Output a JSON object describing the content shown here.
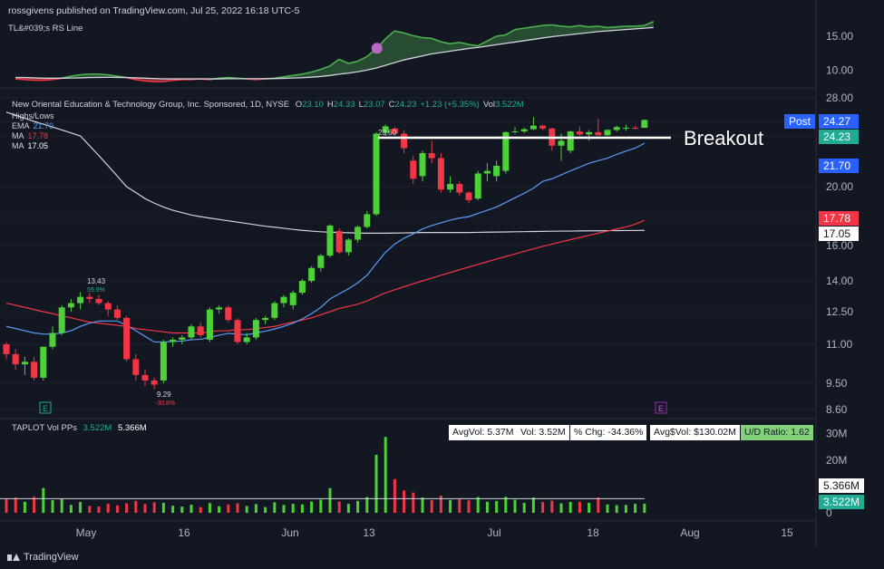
{
  "header": {
    "text": "rossgivens published on TradingView.com, Jul 25, 2022 16:18 UTC-5"
  },
  "rs_panel": {
    "title": "TL&#039;s RS Line",
    "ticks": [
      "15.00",
      "10.00"
    ]
  },
  "main_panel": {
    "title_prefix": "New Oriental Education & Technology Group, Inc. Sponsored, 1D, NYSE",
    "ohlc": [
      {
        "k": "O",
        "v": "23.10"
      },
      {
        "k": "H",
        "v": "24.33"
      },
      {
        "k": "L",
        "v": "23.07"
      },
      {
        "k": "C",
        "v": "24.23"
      },
      {
        "k": "",
        "v": "+1.23 (+5.35%)"
      },
      {
        "k": "Vol",
        "v": "3.522M"
      }
    ],
    "legend": [
      {
        "name": "Highs/Lows",
        "value": "",
        "color": "#d1d4dc"
      },
      {
        "name": "EMA",
        "value": "21.70",
        "color": "#5b9cf6"
      },
      {
        "name": "MA",
        "value": "17.78",
        "color": "#f23645"
      },
      {
        "name": "MA",
        "value": "17.05",
        "color": "#ffffff"
      }
    ],
    "annotation": "Breakout",
    "high_label": "23.60",
    "may_high": {
      "price": "13.43",
      "pct": "59.9%"
    },
    "may_low": {
      "price": "9.29",
      "pct": "-30.8%"
    },
    "price_ticks": [
      "28.00",
      "24.00",
      "22.00",
      "20.00",
      "18.00",
      "16.00",
      "14.00",
      "12.50",
      "11.00",
      "9.50",
      "8.60"
    ],
    "price_badges": [
      {
        "label": "Post",
        "value": "24.27",
        "bg": "#2962ff",
        "fg": "#ffffff"
      },
      {
        "label": "",
        "value": "24.23",
        "bg": "#22ab94",
        "fg": "#ffffff"
      },
      {
        "label": "",
        "value": "21.70",
        "bg": "#2962ff",
        "fg": "#ffffff"
      },
      {
        "label": "",
        "value": "17.78",
        "bg": "#f23645",
        "fg": "#ffffff"
      },
      {
        "label": "",
        "value": "17.05",
        "bg": "#ffffff",
        "fg": "#131722"
      }
    ],
    "earnings_marker": "E"
  },
  "volume_panel": {
    "title": "TAPLOT Vol PPs",
    "value1": "3.522M",
    "value2": "5.366M",
    "stats": [
      {
        "text": "AvgVol: 5.37M",
        "green": false
      },
      {
        "text": "Vol: 3.52M",
        "green": false
      },
      {
        "text": "% Chg: -34.36%",
        "green": false
      },
      {
        "text": "Avg$Vol: $130.02M",
        "green": false
      },
      {
        "text": "U/D Ratio: 1.62",
        "green": true
      }
    ],
    "ticks": [
      "30M",
      "20M",
      "10M",
      "0"
    ],
    "badges": [
      {
        "value": "5.366M",
        "bg": "#ffffff",
        "fg": "#131722"
      },
      {
        "value": "3.522M",
        "bg": "#22ab94",
        "fg": "#ffffff"
      }
    ]
  },
  "x_axis": [
    "May",
    "16",
    "Jun",
    "13",
    "Jul",
    "18",
    "Aug",
    "15"
  ],
  "footer": {
    "brand": "TradingView"
  },
  "chart_data": {
    "type": "candlestick",
    "scale": "log",
    "ylim": [
      8.6,
      28
    ],
    "candles": [
      {
        "o": 11.0,
        "h": 11.1,
        "l": 10.4,
        "c": 10.6
      },
      {
        "o": 10.6,
        "h": 10.8,
        "l": 10.0,
        "c": 10.2
      },
      {
        "o": 10.2,
        "h": 10.5,
        "l": 9.8,
        "c": 10.3
      },
      {
        "o": 10.3,
        "h": 10.5,
        "l": 9.6,
        "c": 9.7
      },
      {
        "o": 9.7,
        "h": 10.9,
        "l": 9.6,
        "c": 10.9
      },
      {
        "o": 10.9,
        "h": 11.8,
        "l": 10.8,
        "c": 11.5
      },
      {
        "o": 11.5,
        "h": 12.8,
        "l": 11.4,
        "c": 12.7
      },
      {
        "o": 12.7,
        "h": 13.1,
        "l": 12.5,
        "c": 12.9
      },
      {
        "o": 12.9,
        "h": 13.43,
        "l": 12.6,
        "c": 13.2
      },
      {
        "o": 13.2,
        "h": 13.4,
        "l": 12.9,
        "c": 13.1
      },
      {
        "o": 13.1,
        "h": 13.3,
        "l": 12.8,
        "c": 12.9
      },
      {
        "o": 12.9,
        "h": 13.0,
        "l": 12.3,
        "c": 12.6
      },
      {
        "o": 12.6,
        "h": 12.8,
        "l": 12.1,
        "c": 12.2
      },
      {
        "o": 12.2,
        "h": 12.3,
        "l": 10.3,
        "c": 10.4
      },
      {
        "o": 10.4,
        "h": 10.6,
        "l": 9.6,
        "c": 9.8
      },
      {
        "o": 9.8,
        "h": 10.0,
        "l": 9.4,
        "c": 9.6
      },
      {
        "o": 9.6,
        "h": 9.7,
        "l": 9.29,
        "c": 9.45
      },
      {
        "o": 9.6,
        "h": 11.2,
        "l": 9.5,
        "c": 11.1
      },
      {
        "o": 11.1,
        "h": 11.3,
        "l": 10.9,
        "c": 11.2
      },
      {
        "o": 11.2,
        "h": 11.4,
        "l": 11.0,
        "c": 11.3
      },
      {
        "o": 11.3,
        "h": 11.9,
        "l": 11.2,
        "c": 11.8
      },
      {
        "o": 11.8,
        "h": 12.0,
        "l": 11.3,
        "c": 11.4
      },
      {
        "o": 11.2,
        "h": 12.7,
        "l": 11.1,
        "c": 12.6
      },
      {
        "o": 12.6,
        "h": 12.8,
        "l": 12.4,
        "c": 12.7
      },
      {
        "o": 12.7,
        "h": 12.8,
        "l": 12.0,
        "c": 12.1
      },
      {
        "o": 12.1,
        "h": 12.2,
        "l": 11.0,
        "c": 11.1
      },
      {
        "o": 11.1,
        "h": 11.5,
        "l": 11.0,
        "c": 11.3
      },
      {
        "o": 11.3,
        "h": 12.2,
        "l": 11.2,
        "c": 12.1
      },
      {
        "o": 12.1,
        "h": 12.3,
        "l": 11.9,
        "c": 12.2
      },
      {
        "o": 12.2,
        "h": 13.0,
        "l": 12.1,
        "c": 12.9
      },
      {
        "o": 12.9,
        "h": 13.3,
        "l": 12.7,
        "c": 13.2
      },
      {
        "o": 12.8,
        "h": 13.5,
        "l": 12.6,
        "c": 13.4
      },
      {
        "o": 13.4,
        "h": 14.1,
        "l": 13.3,
        "c": 14.0
      },
      {
        "o": 14.0,
        "h": 14.8,
        "l": 13.9,
        "c": 14.7
      },
      {
        "o": 14.7,
        "h": 15.5,
        "l": 14.5,
        "c": 15.4
      },
      {
        "o": 15.4,
        "h": 17.5,
        "l": 15.3,
        "c": 17.4
      },
      {
        "o": 17.0,
        "h": 17.2,
        "l": 15.5,
        "c": 15.6
      },
      {
        "o": 15.6,
        "h": 16.5,
        "l": 15.4,
        "c": 16.4
      },
      {
        "o": 16.4,
        "h": 17.4,
        "l": 16.2,
        "c": 17.3
      },
      {
        "o": 17.3,
        "h": 18.4,
        "l": 17.2,
        "c": 18.2
      },
      {
        "o": 18.2,
        "h": 22.5,
        "l": 18.1,
        "c": 22.3
      },
      {
        "o": 22.4,
        "h": 23.6,
        "l": 22.0,
        "c": 23.3
      },
      {
        "o": 23.0,
        "h": 23.2,
        "l": 22.1,
        "c": 22.3
      },
      {
        "o": 22.3,
        "h": 22.8,
        "l": 21.3,
        "c": 21.5
      },
      {
        "o": 21.0,
        "h": 21.2,
        "l": 20.1,
        "c": 20.3
      },
      {
        "o": 20.4,
        "h": 21.4,
        "l": 20.2,
        "c": 21.3
      },
      {
        "o": 21.3,
        "h": 21.8,
        "l": 20.9,
        "c": 21.1
      },
      {
        "o": 21.1,
        "h": 21.3,
        "l": 19.6,
        "c": 19.8
      },
      {
        "o": 19.8,
        "h": 20.4,
        "l": 19.6,
        "c": 20.1
      },
      {
        "o": 20.1,
        "h": 20.2,
        "l": 19.4,
        "c": 19.6
      },
      {
        "o": 19.6,
        "h": 19.7,
        "l": 18.9,
        "c": 19.1
      },
      {
        "o": 19.2,
        "h": 20.6,
        "l": 19.1,
        "c": 20.5
      },
      {
        "o": 20.5,
        "h": 20.9,
        "l": 20.2,
        "c": 20.6
      },
      {
        "o": 20.4,
        "h": 21.0,
        "l": 20.2,
        "c": 20.8
      },
      {
        "o": 20.6,
        "h": 22.6,
        "l": 20.5,
        "c": 22.5
      },
      {
        "o": 22.5,
        "h": 23.2,
        "l": 22.3,
        "c": 22.6
      },
      {
        "o": 22.6,
        "h": 23.1,
        "l": 22.4,
        "c": 22.9
      },
      {
        "o": 22.9,
        "h": 24.7,
        "l": 22.8,
        "c": 23.4
      },
      {
        "o": 23.4,
        "h": 23.5,
        "l": 22.8,
        "c": 23.0
      },
      {
        "o": 23.0,
        "h": 23.1,
        "l": 21.4,
        "c": 21.6
      },
      {
        "o": 21.6,
        "h": 22.3,
        "l": 21.0,
        "c": 21.8
      },
      {
        "o": 21.4,
        "h": 22.7,
        "l": 21.3,
        "c": 22.6
      },
      {
        "o": 22.6,
        "h": 23.3,
        "l": 22.0,
        "c": 22.2
      },
      {
        "o": 22.2,
        "h": 22.8,
        "l": 21.8,
        "c": 22.5
      },
      {
        "o": 22.5,
        "h": 24.4,
        "l": 22.0,
        "c": 22.1
      },
      {
        "o": 22.1,
        "h": 22.9,
        "l": 22.0,
        "c": 22.8
      },
      {
        "o": 22.8,
        "h": 23.4,
        "l": 22.6,
        "c": 23.2
      },
      {
        "o": 23.0,
        "h": 23.5,
        "l": 22.7,
        "c": 23.1
      },
      {
        "o": 23.1,
        "h": 23.4,
        "l": 22.9,
        "c": 23.0
      },
      {
        "o": 23.1,
        "h": 24.33,
        "l": 23.07,
        "c": 24.23
      }
    ],
    "ema": [
      11.8,
      11.7,
      11.6,
      11.5,
      11.45,
      11.45,
      11.5,
      11.6,
      11.8,
      11.95,
      12.05,
      12.05,
      12.05,
      11.85,
      11.6,
      11.35,
      11.1,
      11.1,
      11.12,
      11.14,
      11.2,
      11.22,
      11.3,
      11.4,
      11.48,
      11.45,
      11.42,
      11.5,
      11.58,
      11.68,
      11.8,
      11.95,
      12.15,
      12.4,
      12.7,
      13.1,
      13.35,
      13.6,
      13.9,
      14.3,
      14.95,
      15.6,
      16.1,
      16.5,
      16.8,
      17.15,
      17.4,
      17.6,
      17.8,
      17.95,
      18.05,
      18.25,
      18.45,
      18.65,
      18.95,
      19.25,
      19.55,
      19.9,
      20.2,
      20.3,
      20.45,
      20.6,
      20.75,
      20.9,
      21.0,
      21.1,
      21.25,
      21.38,
      21.5,
      21.7
    ],
    "ma_red": [
      12.9,
      12.8,
      12.7,
      12.6,
      12.5,
      12.4,
      12.3,
      12.2,
      12.1,
      12.0,
      11.95,
      11.9,
      11.85,
      11.8,
      11.7,
      11.65,
      11.6,
      11.55,
      11.5,
      11.5,
      11.5,
      11.5,
      11.55,
      11.6,
      11.6,
      11.65,
      11.65,
      11.7,
      11.75,
      11.8,
      11.9,
      12.0,
      12.1,
      12.2,
      12.35,
      12.5,
      12.65,
      12.75,
      12.85,
      13.0,
      13.2,
      13.4,
      13.55,
      13.7,
      13.85,
      14.0,
      14.15,
      14.3,
      14.45,
      14.6,
      14.75,
      14.9,
      15.05,
      15.2,
      15.35,
      15.5,
      15.65,
      15.8,
      15.95,
      16.1,
      16.25,
      16.4,
      16.55,
      16.7,
      16.85,
      17.0,
      17.15,
      17.3,
      17.5,
      17.78
    ],
    "ma_white": [
      25.5,
      25.0,
      24.5,
      24.0,
      23.6,
      23.2,
      22.8,
      22.4,
      22.0,
      21.6,
      21.2,
      20.8,
      20.4,
      20.0,
      19.6,
      19.2,
      18.9,
      18.65,
      18.45,
      18.3,
      18.15,
      18.05,
      17.95,
      17.85,
      17.75,
      17.65,
      17.55,
      17.45,
      17.35,
      17.28,
      17.2,
      17.12,
      17.05,
      17.0,
      16.95,
      16.92,
      16.9,
      16.88,
      16.86,
      16.85,
      16.85,
      16.85,
      16.86,
      16.87,
      16.88,
      16.9,
      16.9,
      16.9,
      16.9,
      16.9,
      16.9,
      16.91,
      16.92,
      16.93,
      16.94,
      16.95,
      16.96,
      16.97,
      16.98,
      16.99,
      17.0,
      17.0,
      17.01,
      17.02,
      17.02,
      17.03,
      17.03,
      17.04,
      17.04,
      17.05
    ],
    "rs_line": [
      8.7,
      8.6,
      8.5,
      8.5,
      8.6,
      8.8,
      9.1,
      9.3,
      9.4,
      9.4,
      9.3,
      9.1,
      8.9,
      8.6,
      8.4,
      8.3,
      8.3,
      8.5,
      8.6,
      8.6,
      8.7,
      8.6,
      8.8,
      8.9,
      8.8,
      8.7,
      8.6,
      8.7,
      8.8,
      9.0,
      9.2,
      9.4,
      9.7,
      10.1,
      10.6,
      11.6,
      11.0,
      11.3,
      12.0,
      13.1,
      14.6,
      15.8,
      15.5,
      15.1,
      14.8,
      14.7,
      14.2,
      13.9,
      14.1,
      13.8,
      13.6,
      14.3,
      15.0,
      15.2,
      16.0,
      16.2,
      16.4,
      16.6,
      16.7,
      16.5,
      16.4,
      16.6,
      16.4,
      16.5,
      16.3,
      16.4,
      16.5,
      16.5,
      16.6,
      17.2
    ],
    "rs_ma": [
      8.9,
      8.9,
      8.85,
      8.8,
      8.8,
      8.8,
      8.82,
      8.85,
      8.9,
      8.92,
      8.93,
      8.92,
      8.9,
      8.85,
      8.8,
      8.75,
      8.7,
      8.7,
      8.7,
      8.7,
      8.7,
      8.7,
      8.7,
      8.72,
      8.72,
      8.72,
      8.72,
      8.73,
      8.75,
      8.78,
      8.82,
      8.88,
      8.95,
      9.05,
      9.2,
      9.4,
      9.55,
      9.75,
      10.0,
      10.3,
      10.7,
      11.1,
      11.5,
      11.8,
      12.1,
      12.4,
      12.6,
      12.8,
      13.0,
      13.2,
      13.35,
      13.55,
      13.75,
      13.95,
      14.15,
      14.35,
      14.55,
      14.75,
      14.95,
      15.1,
      15.25,
      15.4,
      15.55,
      15.7,
      15.8,
      15.9,
      16.0,
      16.1,
      16.2,
      16.3
    ],
    "rs_ylim": [
      7.5,
      18.5
    ],
    "volume": [
      {
        "v": 5.5,
        "up": false
      },
      {
        "v": 5.8,
        "up": false
      },
      {
        "v": 4.2,
        "up": true
      },
      {
        "v": 6.0,
        "up": false
      },
      {
        "v": 9.4,
        "up": true
      },
      {
        "v": 4.8,
        "up": true
      },
      {
        "v": 5.2,
        "up": true
      },
      {
        "v": 3.0,
        "up": true
      },
      {
        "v": 4.1,
        "up": true
      },
      {
        "v": 2.6,
        "up": false
      },
      {
        "v": 2.4,
        "up": false
      },
      {
        "v": 3.5,
        "up": false
      },
      {
        "v": 2.8,
        "up": false
      },
      {
        "v": 3.6,
        "up": false
      },
      {
        "v": 4.5,
        "up": false
      },
      {
        "v": 3.3,
        "up": false
      },
      {
        "v": 4.0,
        "up": false
      },
      {
        "v": 3.8,
        "up": true
      },
      {
        "v": 2.7,
        "up": true
      },
      {
        "v": 2.4,
        "up": true
      },
      {
        "v": 3.1,
        "up": true
      },
      {
        "v": 2.2,
        "up": false
      },
      {
        "v": 3.7,
        "up": true
      },
      {
        "v": 2.5,
        "up": true
      },
      {
        "v": 3.2,
        "up": false
      },
      {
        "v": 3.6,
        "up": false
      },
      {
        "v": 2.6,
        "up": true
      },
      {
        "v": 3.3,
        "up": true
      },
      {
        "v": 2.2,
        "up": true
      },
      {
        "v": 4.0,
        "up": true
      },
      {
        "v": 3.0,
        "up": true
      },
      {
        "v": 3.4,
        "up": true
      },
      {
        "v": 3.2,
        "up": true
      },
      {
        "v": 4.3,
        "up": true
      },
      {
        "v": 5.0,
        "up": true
      },
      {
        "v": 9.4,
        "up": true
      },
      {
        "v": 4.3,
        "up": false
      },
      {
        "v": 3.4,
        "up": true
      },
      {
        "v": 4.5,
        "up": true
      },
      {
        "v": 6.0,
        "up": true
      },
      {
        "v": 22.0,
        "up": true
      },
      {
        "v": 28.8,
        "up": true
      },
      {
        "v": 12.8,
        "up": false
      },
      {
        "v": 8.5,
        "up": false
      },
      {
        "v": 7.7,
        "up": false
      },
      {
        "v": 5.8,
        "up": true
      },
      {
        "v": 4.8,
        "up": false
      },
      {
        "v": 6.5,
        "up": false
      },
      {
        "v": 4.9,
        "up": true
      },
      {
        "v": 5.2,
        "up": false
      },
      {
        "v": 4.7,
        "up": false
      },
      {
        "v": 6.0,
        "up": true
      },
      {
        "v": 4.2,
        "up": true
      },
      {
        "v": 4.5,
        "up": true
      },
      {
        "v": 6.1,
        "up": true
      },
      {
        "v": 5.0,
        "up": true
      },
      {
        "v": 3.8,
        "up": true
      },
      {
        "v": 5.8,
        "up": true
      },
      {
        "v": 4.1,
        "up": false
      },
      {
        "v": 4.6,
        "up": false
      },
      {
        "v": 3.6,
        "up": true
      },
      {
        "v": 4.1,
        "up": true
      },
      {
        "v": 4.2,
        "up": false
      },
      {
        "v": 3.8,
        "up": true
      },
      {
        "v": 5.8,
        "up": false
      },
      {
        "v": 3.2,
        "up": true
      },
      {
        "v": 2.9,
        "up": true
      },
      {
        "v": 3.0,
        "up": true
      },
      {
        "v": 3.4,
        "up": true
      },
      {
        "v": 3.5,
        "up": true
      }
    ],
    "avg_volume": 5.37,
    "volume_ylim": [
      0,
      33
    ]
  }
}
